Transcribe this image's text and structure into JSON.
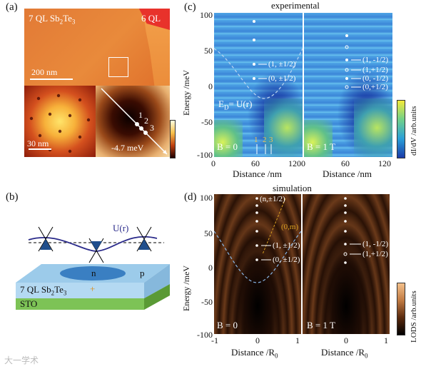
{
  "panels": {
    "a": {
      "label": "(a)",
      "sample_label": "7 QL Sb",
      "sample_sub1": "2",
      "sample_mid": "Te",
      "sample_sub2": "3",
      "island_label": "6 QL",
      "scalebar_top": "200 nm",
      "scalebar_bottom": "30 nm",
      "energy_label": "-4.7 meV",
      "points": [
        "1",
        "2",
        "3"
      ]
    },
    "b": {
      "label": "(b)",
      "potential_label": "U(r)",
      "n_label": "n",
      "p_label": "p",
      "film_label": "7 QL Sb",
      "film_sub1": "2",
      "film_mid": "Te",
      "film_sub2": "3",
      "substrate_label": "STO",
      "plus_mark": "+"
    },
    "c": {
      "label": "(c)",
      "title": "experimental",
      "ylabel": "Energy /meV",
      "xlabel": "Distance /nm",
      "yticks": [
        "100",
        "50",
        "0",
        "-50",
        "-100"
      ],
      "xticks_left": [
        "0",
        "60",
        "120"
      ],
      "xticks_right": [
        "0",
        "60",
        "120"
      ],
      "b0": "B = 0",
      "b1": "B = 1 T",
      "ed_label": "E",
      "ed_sub": "D",
      "ed_rest": "= U(r)",
      "annot_left": [
        "(1, ±1/2)",
        "(0, ±1/2)"
      ],
      "annot_right": [
        "(1, -1/2)",
        "(1,+1/2)",
        "(0, -1/2)",
        "(0,+1/2)"
      ],
      "marks": [
        "1",
        "2",
        "3"
      ],
      "colorbar_label": "dI/dV /arb.units"
    },
    "d": {
      "label": "(d)",
      "title": "simulation",
      "ylabel": "Energy /meV",
      "xlabel": "Distance /R",
      "xlabel_sub": "0",
      "yticks": [
        "100",
        "50",
        "0",
        "-50",
        "-100"
      ],
      "xticks_left": [
        "-1",
        "0",
        "1"
      ],
      "xticks_right": [
        "0",
        "1"
      ],
      "b0": "B = 0",
      "b1": "B = 1 T",
      "annot_left": [
        "(n,±1/2)",
        "(0,m)",
        "(1, ±1/2)",
        "(0, ±1/2)"
      ],
      "annot_right": [
        "(1, -1/2)",
        "(1,+1/2)"
      ],
      "colorbar_label": "LODS /arb.units"
    }
  },
  "watermark": "大一学术"
}
